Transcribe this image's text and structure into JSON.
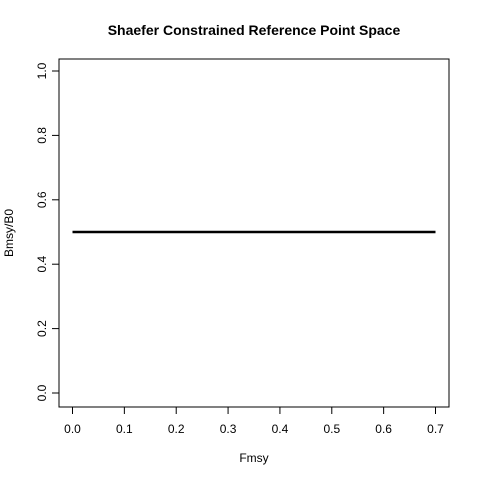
{
  "chart_data": {
    "type": "line",
    "title": "Shaefer Constrained Reference Point Space",
    "xlabel": "Fmsy",
    "ylabel": "Bmsy/B0",
    "xlim": [
      0.0,
      0.7
    ],
    "ylim": [
      0.0,
      1.0
    ],
    "x_ticks": [
      "0.0",
      "0.1",
      "0.2",
      "0.3",
      "0.4",
      "0.5",
      "0.6",
      "0.7"
    ],
    "y_ticks": [
      "0.0",
      "0.2",
      "0.4",
      "0.6",
      "0.8",
      "1.0"
    ],
    "grid": false,
    "legend": "none",
    "series": [
      {
        "color": "#000000",
        "x": [
          0.0,
          0.7
        ],
        "y": [
          0.5,
          0.5
        ]
      }
    ]
  }
}
